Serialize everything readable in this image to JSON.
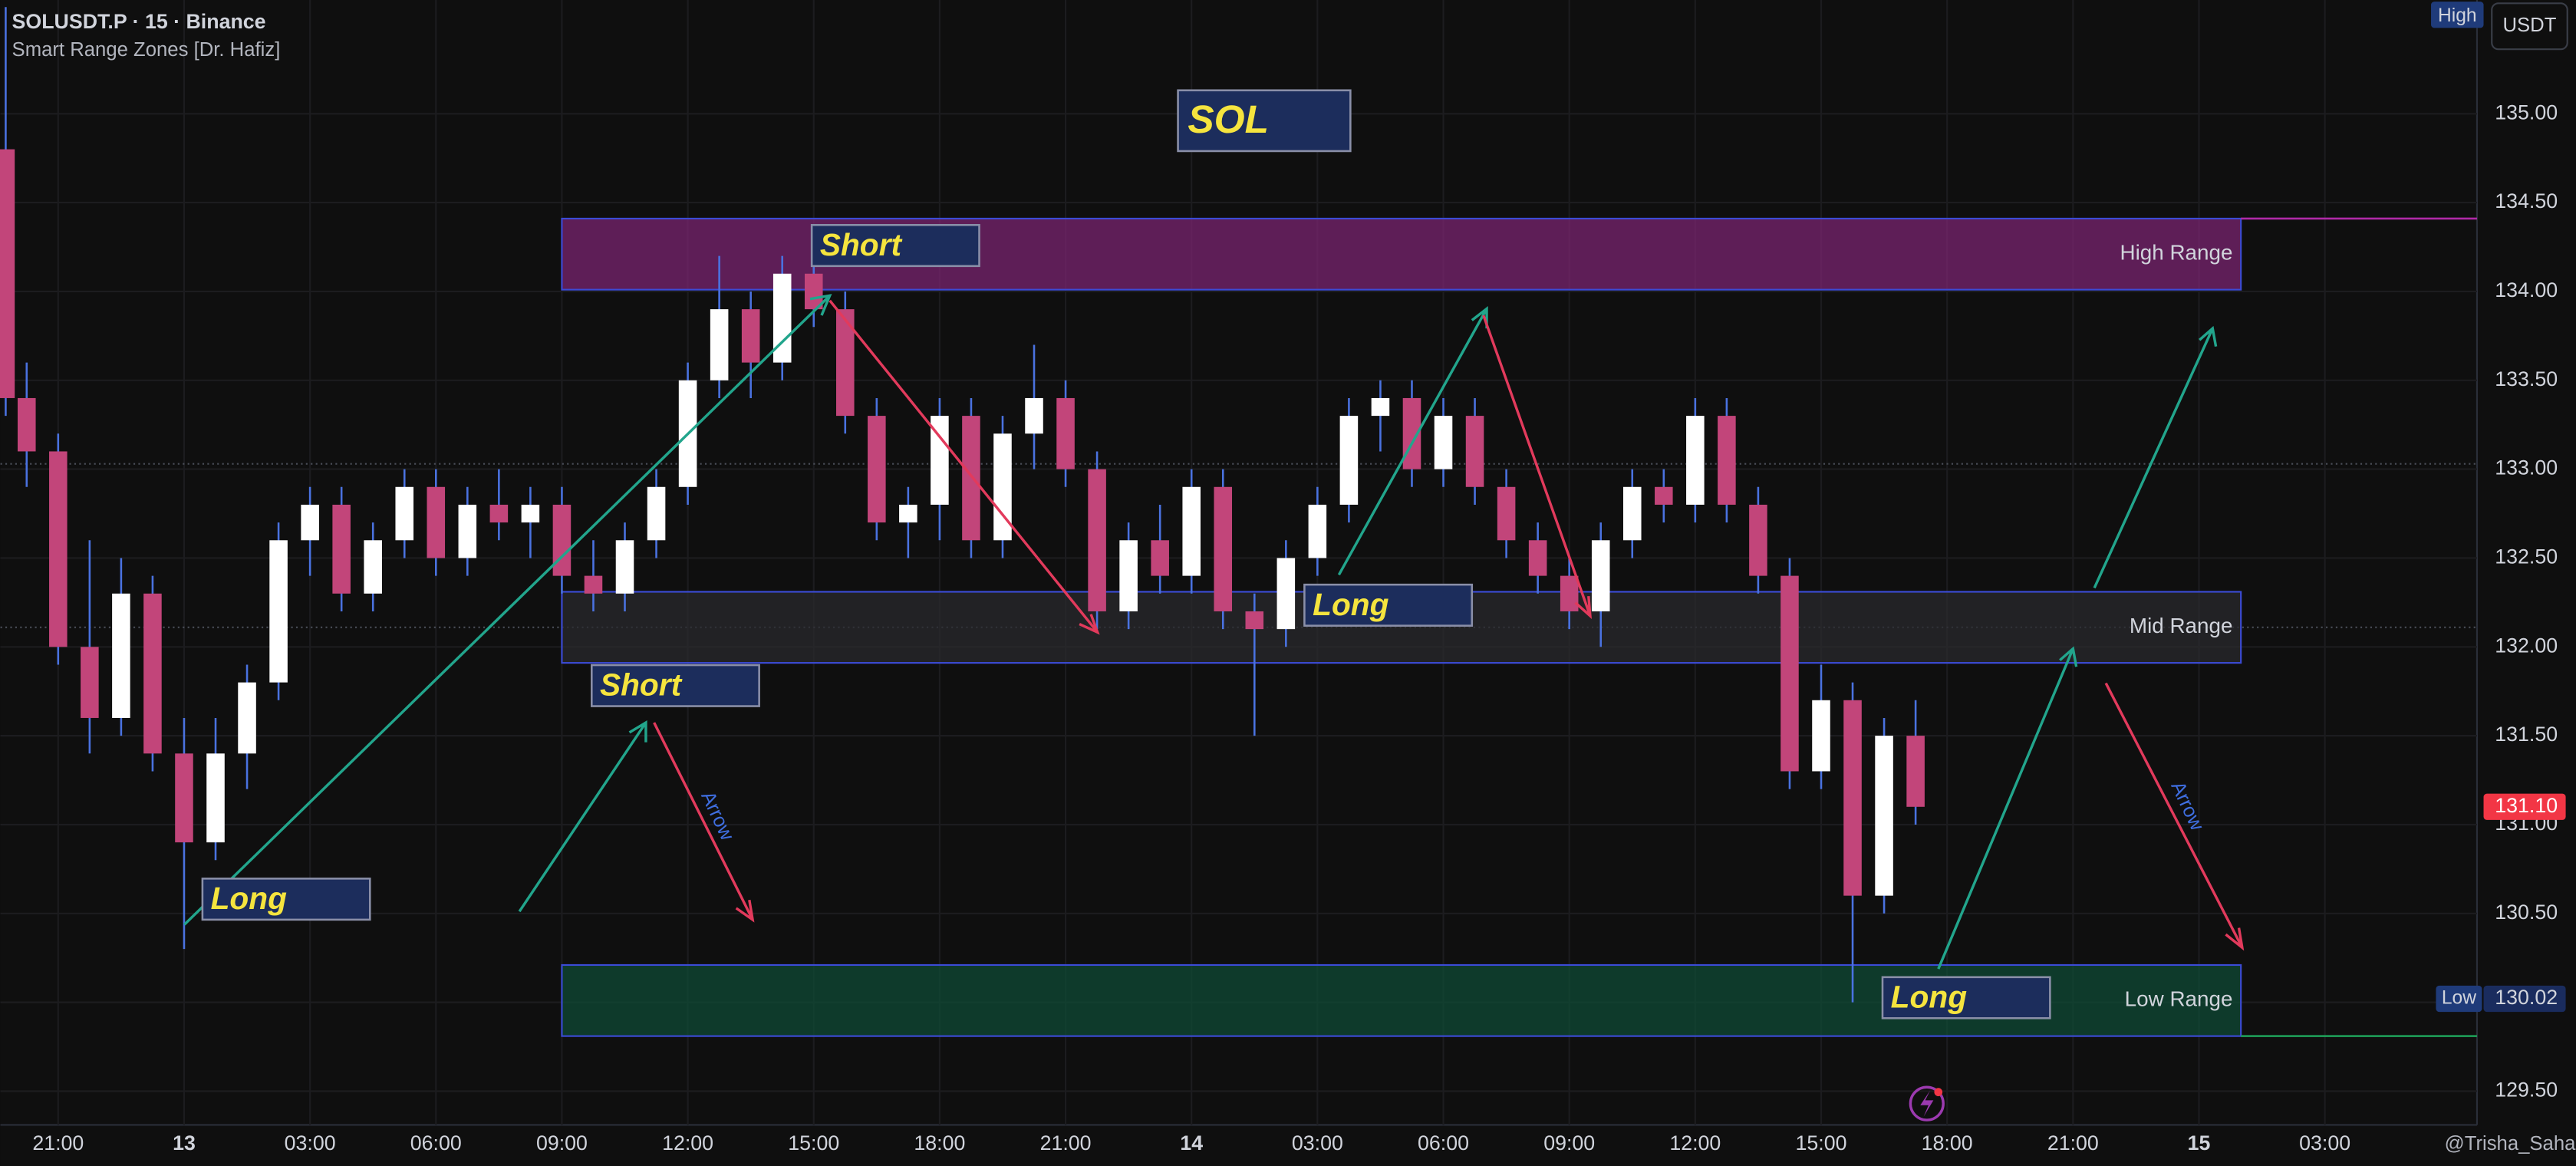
{
  "chart_data": {
    "type": "candlestick",
    "title": "SOLUSDT.P · 15 · Binance",
    "subtitle": "Smart Range Zones [Dr. Hafiz]",
    "watermark": "@Trisha_Saha",
    "currency": "USDT",
    "high_tag": "High",
    "xlim": [
      -5.5,
      230.5
    ],
    "ylim": [
      129.31,
      135.64
    ],
    "grid": true,
    "up_color": "#ffffff",
    "down_color": "#c2457a",
    "wick_color": "#4a72e0",
    "yticks": [
      {
        "value": 129.5,
        "label": "129.50"
      },
      {
        "value": 130,
        "label": "130.00"
      },
      {
        "value": 130.5,
        "label": "130.50"
      },
      {
        "value": 131,
        "label": "131.00"
      },
      {
        "value": 131.5,
        "label": "131.50"
      },
      {
        "value": 132,
        "label": "132.00"
      },
      {
        "value": 132.5,
        "label": "132.50"
      },
      {
        "value": 133,
        "label": "133.00"
      },
      {
        "value": 133.5,
        "label": "133.50"
      },
      {
        "value": 134,
        "label": "134.00"
      },
      {
        "value": 134.5,
        "label": "134.50"
      },
      {
        "value": 135,
        "label": "135.00"
      }
    ],
    "xticks": [
      {
        "value": 0,
        "label": "21:00"
      },
      {
        "value": 12,
        "label": "13"
      },
      {
        "value": 24,
        "label": "03:00"
      },
      {
        "value": 36,
        "label": "06:00"
      },
      {
        "value": 48,
        "label": "09:00"
      },
      {
        "value": 60,
        "label": "12:00"
      },
      {
        "value": 72,
        "label": "15:00"
      },
      {
        "value": 84,
        "label": "18:00"
      },
      {
        "value": 96,
        "label": "21:00"
      },
      {
        "value": 108,
        "label": "14"
      },
      {
        "value": 120,
        "label": "03:00"
      },
      {
        "value": 132,
        "label": "06:00"
      },
      {
        "value": 144,
        "label": "09:00"
      },
      {
        "value": 156,
        "label": "12:00"
      },
      {
        "value": 168,
        "label": "15:00"
      },
      {
        "value": 180,
        "label": "18:00"
      },
      {
        "value": 192,
        "label": "21:00"
      },
      {
        "value": 204,
        "label": "15"
      },
      {
        "value": 216,
        "label": "03:00"
      }
    ],
    "x": [
      -5,
      -3,
      0,
      3,
      6,
      9,
      12,
      15,
      18,
      21,
      24,
      27,
      30,
      33,
      36,
      39,
      42,
      45,
      48,
      51,
      54,
      57,
      60,
      63,
      66,
      69,
      72,
      75,
      78,
      81,
      84,
      87,
      90,
      93,
      96,
      99,
      102,
      105,
      108,
      111,
      114,
      117,
      120,
      123,
      126,
      129,
      132,
      135,
      138,
      141,
      144,
      147,
      150,
      153,
      156,
      159,
      162,
      165,
      168,
      171,
      174,
      177
    ],
    "open": [
      134.8,
      133.4,
      133.1,
      132.0,
      131.6,
      132.3,
      131.4,
      130.9,
      131.4,
      131.8,
      132.6,
      132.8,
      132.3,
      132.6,
      132.9,
      132.5,
      132.8,
      132.7,
      132.8,
      132.4,
      132.3,
      132.6,
      132.9,
      133.5,
      133.9,
      133.6,
      134.1,
      133.9,
      133.3,
      132.7,
      132.8,
      133.3,
      132.6,
      133.2,
      133.4,
      133.0,
      132.2,
      132.6,
      132.4,
      132.9,
      132.2,
      132.1,
      132.5,
      132.8,
      133.3,
      133.4,
      133.0,
      133.3,
      132.9,
      132.6,
      132.4,
      132.2,
      132.6,
      132.9,
      132.8,
      133.3,
      132.8,
      132.4,
      131.3,
      131.7,
      130.6,
      131.5
    ],
    "high": [
      135.6,
      133.6,
      133.2,
      132.6,
      132.5,
      132.4,
      131.6,
      131.6,
      131.9,
      132.7,
      132.9,
      132.9,
      132.7,
      133.0,
      133.0,
      132.9,
      133.0,
      132.9,
      132.9,
      132.6,
      132.7,
      133.0,
      133.6,
      134.2,
      134.0,
      134.2,
      134.2,
      134.0,
      133.4,
      132.9,
      133.4,
      133.4,
      133.3,
      133.7,
      133.5,
      133.1,
      132.7,
      132.8,
      133.0,
      133.0,
      132.3,
      132.6,
      132.9,
      133.4,
      133.5,
      133.5,
      133.4,
      133.4,
      133.0,
      132.7,
      132.5,
      132.7,
      133.0,
      133.0,
      133.4,
      133.4,
      132.9,
      132.5,
      131.9,
      131.8,
      131.6,
      131.7
    ],
    "low": [
      133.3,
      132.9,
      131.9,
      131.4,
      131.5,
      131.3,
      130.3,
      130.8,
      131.2,
      131.7,
      132.4,
      132.2,
      132.2,
      132.5,
      132.4,
      132.4,
      132.6,
      132.5,
      132.3,
      132.2,
      132.2,
      132.5,
      132.8,
      133.4,
      133.4,
      133.5,
      133.8,
      133.2,
      132.6,
      132.5,
      132.6,
      132.5,
      132.5,
      133.0,
      132.9,
      132.1,
      132.1,
      132.3,
      132.3,
      132.1,
      131.5,
      132.0,
      132.4,
      132.7,
      133.1,
      132.9,
      132.9,
      132.8,
      132.5,
      132.3,
      132.1,
      132.0,
      132.5,
      132.7,
      132.7,
      132.7,
      132.3,
      131.2,
      131.2,
      130.0,
      130.5,
      131.0
    ],
    "close": [
      133.4,
      133.1,
      132.0,
      131.6,
      132.3,
      131.4,
      130.9,
      131.4,
      131.8,
      132.6,
      132.8,
      132.3,
      132.6,
      132.9,
      132.5,
      132.8,
      132.7,
      132.8,
      132.4,
      132.3,
      132.6,
      132.9,
      133.5,
      133.9,
      133.6,
      134.1,
      133.9,
      133.3,
      132.7,
      132.8,
      133.3,
      132.6,
      133.2,
      133.4,
      133.0,
      132.2,
      132.6,
      132.4,
      132.9,
      132.2,
      132.1,
      132.5,
      132.8,
      133.3,
      133.4,
      133.0,
      133.3,
      132.9,
      132.6,
      132.4,
      132.2,
      132.6,
      132.9,
      132.8,
      133.3,
      132.8,
      132.4,
      131.3,
      131.7,
      130.6,
      131.5,
      131.1
    ],
    "ref_lines": [
      133.03,
      132.11
    ],
    "last_price": {
      "value": 131.1,
      "label": "131.10"
    },
    "low_marker": {
      "tag": "Low",
      "value": 130.02,
      "label": "130.02"
    },
    "zones": [
      {
        "name": "High Range",
        "top": 134.41,
        "bottom": 134.01,
        "x_start": 48,
        "x_end": 208,
        "color": "#7a2470"
      },
      {
        "name": "Mid Range",
        "top": 132.31,
        "bottom": 131.91,
        "x_start": 48,
        "x_end": 208,
        "color": "#2a2a2e"
      },
      {
        "name": "Low Range",
        "top": 130.21,
        "bottom": 129.81,
        "x_start": 48,
        "x_end": 208,
        "color": "#0f4a36"
      }
    ],
    "annotations": [
      "SOL",
      "Short",
      "Short",
      "Long",
      "Long",
      "Long",
      "Arrow",
      "Arrow"
    ]
  }
}
